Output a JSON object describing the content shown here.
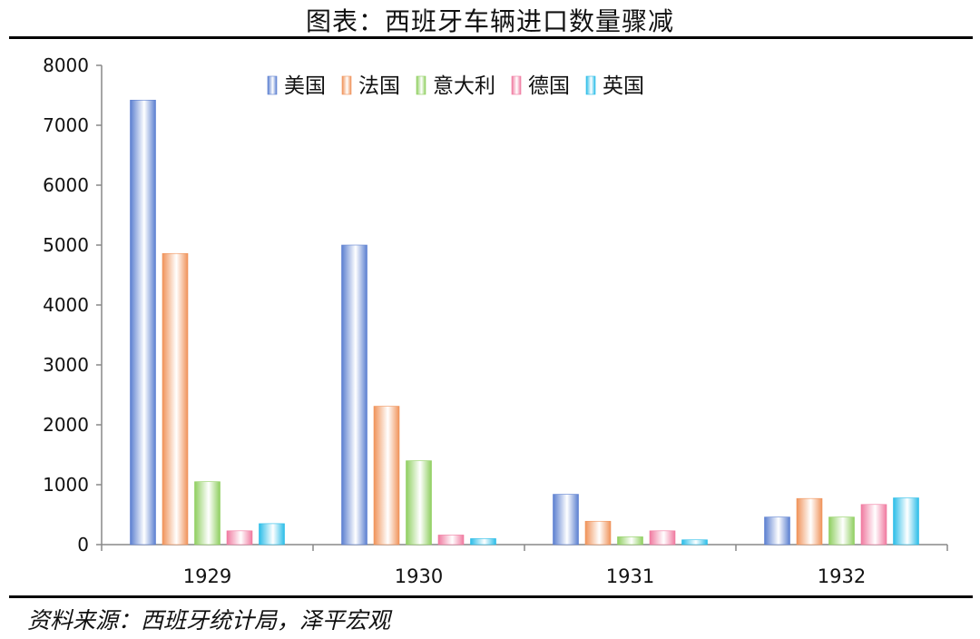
{
  "title": "图表：西班牙车辆进口数量骤减",
  "source": "资料来源：西班牙统计局，泽平宏观",
  "chart_data": {
    "type": "bar",
    "categories": [
      "1929",
      "1930",
      "1931",
      "1932"
    ],
    "series": [
      {
        "name": "美国",
        "color": "#5b7fd0",
        "values": [
          7420,
          5000,
          840,
          460
        ]
      },
      {
        "name": "法国",
        "color": "#f0935a",
        "values": [
          4860,
          2310,
          390,
          770
        ]
      },
      {
        "name": "意大利",
        "color": "#8fcf60",
        "values": [
          1050,
          1400,
          130,
          460
        ]
      },
      {
        "name": "德国",
        "color": "#f07aa0",
        "values": [
          230,
          160,
          230,
          670
        ]
      },
      {
        "name": "英国",
        "color": "#2bbde8",
        "values": [
          350,
          100,
          80,
          780
        ]
      }
    ],
    "ylim": [
      0,
      8000
    ],
    "yticks": [
      0,
      1000,
      2000,
      3000,
      4000,
      5000,
      6000,
      7000,
      8000
    ],
    "legend_position": "top",
    "grid": false
  }
}
